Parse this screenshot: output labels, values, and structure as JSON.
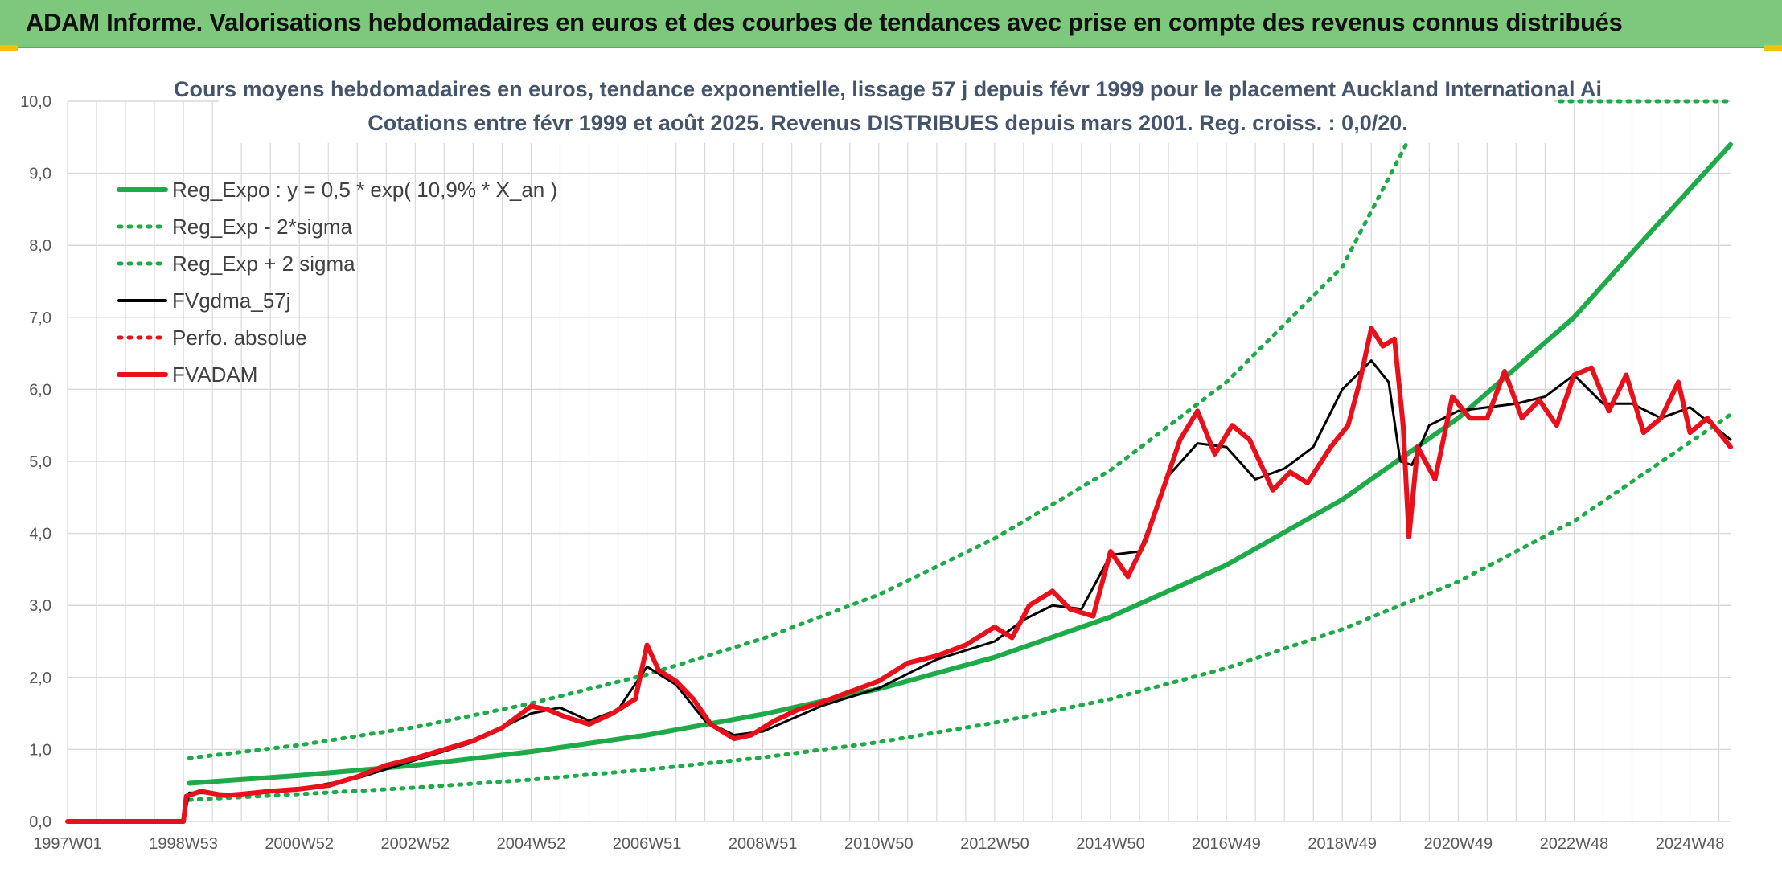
{
  "header": {
    "title": "ADAM Informe. Valorisations hebdomadaires en euros et des courbes de tendances avec prise en compte des revenus connus distribués"
  },
  "chart_data": {
    "type": "line",
    "title": "Cours moyens hebdomadaires en euros, tendance exponentielle, lissage 57 j depuis févr 1999 pour le placement Auckland International Ai",
    "subtitle": "Cotations entre févr 1999 et août 2025. Revenus DISTRIBUES depuis mars 2001. Reg. croiss. : 0,0/20.",
    "xlabel": "",
    "ylabel": "",
    "ylim": [
      0,
      10
    ],
    "y_ticks": [
      "0,0",
      "1,0",
      "2,0",
      "3,0",
      "4,0",
      "5,0",
      "6,0",
      "7,0",
      "8,0",
      "9,0",
      "10,0"
    ],
    "x_range": [
      1997.0,
      2025.7
    ],
    "x_ticks": [
      {
        "label": "1997W01",
        "x": 1997.0
      },
      {
        "label": "1998W53",
        "x": 1999.0
      },
      {
        "label": "2000W52",
        "x": 2001.0
      },
      {
        "label": "2002W52",
        "x": 2003.0
      },
      {
        "label": "2004W52",
        "x": 2005.0
      },
      {
        "label": "2006W51",
        "x": 2007.0
      },
      {
        "label": "2008W51",
        "x": 2009.0
      },
      {
        "label": "2010W50",
        "x": 2011.0
      },
      {
        "label": "2012W50",
        "x": 2013.0
      },
      {
        "label": "2014W50",
        "x": 2015.0
      },
      {
        "label": "2016W49",
        "x": 2017.0
      },
      {
        "label": "2018W49",
        "x": 2019.0
      },
      {
        "label": "2020W49",
        "x": 2021.0
      },
      {
        "label": "2022W48",
        "x": 2023.0
      },
      {
        "label": "2024W48",
        "x": 2025.0
      }
    ],
    "grid": true,
    "legend_position": "top-left",
    "colors": {
      "reg_expo": "#1faa4a",
      "fvgdma": "#000000",
      "perfo": "#e8101b",
      "fvadam": "#e8101b",
      "grid": "#d9d9d9"
    },
    "series": [
      {
        "name": "Reg_Expo : y = 0,5 * exp( 10,9% *  X_an )",
        "style": "solid-thick",
        "color": "#1faa4a",
        "x": [
          1999.1,
          2001,
          2003,
          2005,
          2007,
          2009,
          2011,
          2013,
          2015,
          2017,
          2019,
          2021,
          2023,
          2024,
          2025.7
        ],
        "values": [
          0.53,
          0.64,
          0.78,
          0.97,
          1.2,
          1.49,
          1.84,
          2.28,
          2.84,
          3.56,
          4.47,
          5.6,
          7.0,
          7.9,
          9.4
        ]
      },
      {
        "name": "Reg_Exp - 2*sigma",
        "style": "dotted",
        "color": "#1faa4a",
        "x": [
          1999.1,
          2001,
          2003,
          2005,
          2007,
          2009,
          2011,
          2013,
          2015,
          2017,
          2019,
          2021,
          2023,
          2025.7
        ],
        "values": [
          0.3,
          0.38,
          0.47,
          0.58,
          0.72,
          0.89,
          1.1,
          1.37,
          1.7,
          2.13,
          2.67,
          3.33,
          4.17,
          5.65
        ]
      },
      {
        "name": "Reg_Exp + 2 sigma",
        "style": "dotted",
        "color": "#1faa4a",
        "x": [
          1999.1,
          2001,
          2003,
          2005,
          2007,
          2009,
          2011,
          2013,
          2015,
          2017,
          2019,
          2020.1
        ],
        "values": [
          0.88,
          1.06,
          1.31,
          1.64,
          2.04,
          2.54,
          3.15,
          3.93,
          4.88,
          6.1,
          7.7,
          9.4
        ]
      },
      {
        "name": "FVgdma_57j",
        "style": "solid",
        "color": "#000000",
        "x": [
          1997.0,
          1999.0,
          1999.1,
          2000.0,
          2001.0,
          2002.0,
          2003.0,
          2004.0,
          2005.0,
          2005.5,
          2006.0,
          2006.5,
          2007.0,
          2007.5,
          2008.0,
          2008.5,
          2009.0,
          2010.0,
          2011.0,
          2012.0,
          2013.0,
          2013.5,
          2014.0,
          2014.5,
          2015.0,
          2015.5,
          2016.0,
          2016.5,
          2017.0,
          2017.5,
          2018.0,
          2018.5,
          2019.0,
          2019.5,
          2019.8,
          2020.0,
          2020.2,
          2020.5,
          2021.0,
          2021.5,
          2022.0,
          2022.5,
          2023.0,
          2023.5,
          2024.0,
          2024.5,
          2025.0,
          2025.7
        ],
        "values": [
          0,
          0,
          0.4,
          0.38,
          0.45,
          0.6,
          0.85,
          1.1,
          1.5,
          1.58,
          1.4,
          1.55,
          2.15,
          1.9,
          1.4,
          1.2,
          1.25,
          1.6,
          1.85,
          2.25,
          2.5,
          2.8,
          3.0,
          2.95,
          3.7,
          3.75,
          4.8,
          5.25,
          5.2,
          4.75,
          4.9,
          5.2,
          6.0,
          6.4,
          6.1,
          5.0,
          4.95,
          5.5,
          5.7,
          5.75,
          5.8,
          5.9,
          6.2,
          5.8,
          5.8,
          5.6,
          5.75,
          5.3
        ]
      },
      {
        "name": "Perfo. absolue",
        "style": "dotted",
        "color": "#e8101b",
        "x": [],
        "values": []
      },
      {
        "name": "FVADAM",
        "style": "solid-thick",
        "color": "#e8101b",
        "x": [
          1997.0,
          1999.0,
          1999.05,
          1999.3,
          1999.7,
          2000.0,
          2000.5,
          2001.0,
          2001.5,
          2002.0,
          2002.5,
          2003.0,
          2003.5,
          2004.0,
          2004.5,
          2005.0,
          2005.3,
          2005.6,
          2006.0,
          2006.4,
          2006.8,
          2007.0,
          2007.2,
          2007.5,
          2007.8,
          2008.1,
          2008.5,
          2008.8,
          2009.2,
          2009.6,
          2010.0,
          2010.5,
          2011.0,
          2011.5,
          2012.0,
          2012.5,
          2013.0,
          2013.3,
          2013.6,
          2014.0,
          2014.3,
          2014.7,
          2015.0,
          2015.3,
          2015.6,
          2015.9,
          2016.2,
          2016.5,
          2016.8,
          2017.1,
          2017.4,
          2017.8,
          2018.1,
          2018.4,
          2018.8,
          2019.1,
          2019.3,
          2019.5,
          2019.7,
          2019.9,
          2020.05,
          2020.15,
          2020.3,
          2020.6,
          2020.9,
          2021.2,
          2021.5,
          2021.8,
          2022.1,
          2022.4,
          2022.7,
          2023.0,
          2023.3,
          2023.6,
          2023.9,
          2024.2,
          2024.5,
          2024.8,
          2025.0,
          2025.3,
          2025.7
        ],
        "values": [
          0,
          0,
          0.35,
          0.42,
          0.36,
          0.38,
          0.42,
          0.45,
          0.5,
          0.62,
          0.78,
          0.88,
          1.0,
          1.12,
          1.3,
          1.6,
          1.55,
          1.45,
          1.35,
          1.5,
          1.7,
          2.45,
          2.1,
          1.95,
          1.7,
          1.35,
          1.15,
          1.2,
          1.4,
          1.55,
          1.65,
          1.8,
          1.95,
          2.2,
          2.3,
          2.45,
          2.7,
          2.55,
          3.0,
          3.2,
          2.95,
          2.85,
          3.75,
          3.4,
          3.9,
          4.6,
          5.3,
          5.7,
          5.1,
          5.5,
          5.3,
          4.6,
          4.85,
          4.7,
          5.2,
          5.5,
          6.1,
          6.85,
          6.6,
          6.7,
          5.5,
          3.95,
          5.2,
          4.75,
          5.9,
          5.6,
          5.6,
          6.25,
          5.6,
          5.85,
          5.5,
          6.2,
          6.3,
          5.7,
          6.2,
          5.4,
          5.6,
          6.1,
          5.4,
          5.6,
          5.2
        ]
      }
    ]
  }
}
